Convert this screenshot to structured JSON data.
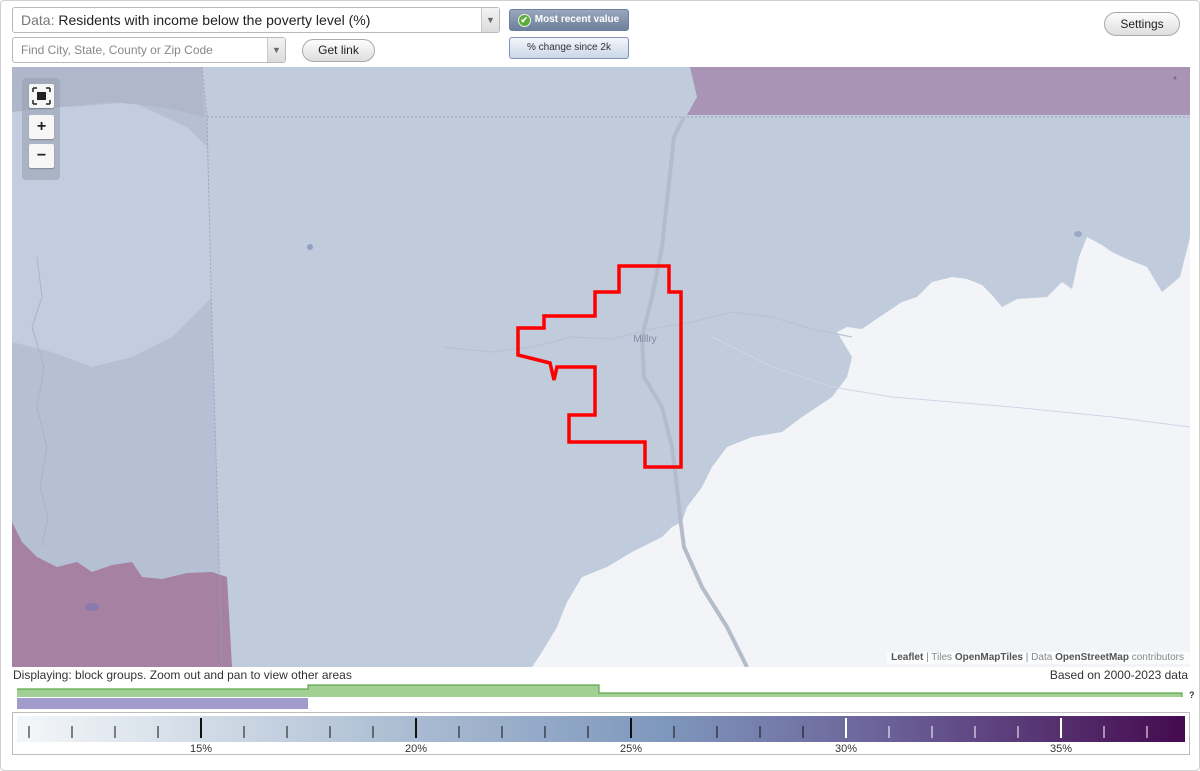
{
  "header": {
    "data_prefix": "Data:",
    "data_value": "Residents with income below the poverty level (%)",
    "search_placeholder": "Find City, State, County or Zip Code",
    "get_link_label": "Get link",
    "settings_label": "Settings",
    "mode_active_label": "Most recent value",
    "mode_inactive_label": "% change since 2k",
    "dropdown_icon": "chevron-down-icon",
    "check_icon": "check-icon"
  },
  "map": {
    "place_label": "Millry",
    "zoom_in": "+",
    "zoom_out": "−",
    "fit_icon": "fit-bounds-icon",
    "highlight_color": "#ff0000",
    "attribution": {
      "leaflet": "Leaflet",
      "sep1": " | Tiles ",
      "tiles": "OpenMapTiles",
      "sep2": " | Data ",
      "data": "OpenStreetMap",
      "suffix": " contributors"
    }
  },
  "footer": {
    "displaying": "Displaying: block groups. Zoom out and pan to view other areas",
    "based_on": "Based on 2000-2023 data",
    "question_mark": "?"
  },
  "legend": {
    "labels": [
      "15%",
      "20%",
      "25%",
      "30%",
      "35%"
    ],
    "gradient_start": "#f2f6f9",
    "gradient_mid": "#7f9bbf",
    "gradient_end": "#4a0f52"
  },
  "timeline": {
    "line_color": "#5ea84a",
    "fill_color": "#a2cf93",
    "selected_color": "#a29ccd"
  },
  "colors": {
    "region_low": "#f2f4f7",
    "region_mid": "#c0cbdc",
    "region_mid2": "#b6c0d5",
    "region_high": "#a994b5",
    "region_high2": "#a681a1"
  }
}
